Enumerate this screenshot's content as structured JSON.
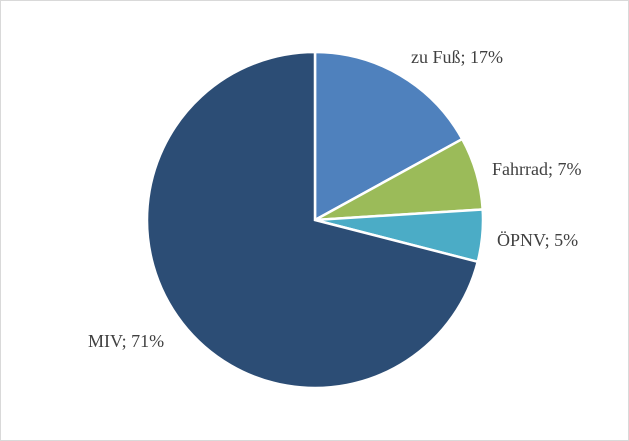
{
  "chart_data": {
    "type": "pie",
    "categories": [
      "zu Fuß",
      "Fahrrad",
      "ÖPNV",
      "MIV"
    ],
    "values": [
      17,
      7,
      5,
      71
    ],
    "unit": "%",
    "data_labels": [
      "zu Fuß; 17%",
      "Fahrrad; 7%",
      "ÖPNV; 5%",
      "MIV; 71%"
    ],
    "colors": [
      "#4f81bd",
      "#9bbb59",
      "#4bacc6",
      "#2c4d75"
    ],
    "start_angle_deg": 0,
    "direction": "clockwise",
    "legend": "none",
    "title": ""
  }
}
